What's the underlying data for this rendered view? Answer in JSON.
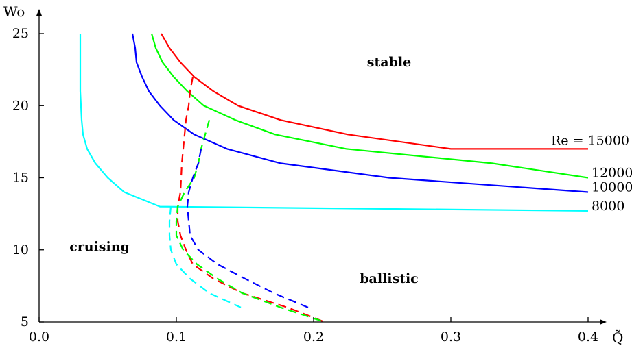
{
  "chart_data": {
    "type": "line",
    "xlabel": "Q̃",
    "ylabel": "Wo",
    "xlim": [
      0.0,
      0.4
    ],
    "ylim": [
      5,
      25
    ],
    "xticks": [
      "0.0",
      "0.1",
      "0.2",
      "0.3",
      "0.4"
    ],
    "yticks": [
      "5",
      "10",
      "15",
      "20",
      "25"
    ],
    "grid": false,
    "region_labels": [
      {
        "text": "stable",
        "x": 0.255,
        "y": 23.0
      },
      {
        "text": "cruising",
        "x": 0.044,
        "y": 10.2
      },
      {
        "text": "ballistic",
        "x": 0.255,
        "y": 8.0
      }
    ],
    "series": [
      {
        "label": "Re = 15000",
        "color": "#ff0000",
        "style": "solid",
        "x": [
          0.089,
          0.095,
          0.103,
          0.113,
          0.127,
          0.145,
          0.176,
          0.225,
          0.3,
          0.4
        ],
        "y": [
          25,
          24,
          23,
          22,
          21,
          20,
          19,
          18,
          17,
          17
        ]
      },
      {
        "label": "12000",
        "color": "#00ff00",
        "style": "solid",
        "x": [
          0.082,
          0.085,
          0.09,
          0.098,
          0.108,
          0.12,
          0.143,
          0.172,
          0.224,
          0.33,
          0.4
        ],
        "y": [
          25,
          24,
          23,
          22,
          21,
          20,
          19,
          18,
          17,
          16,
          15
        ]
      },
      {
        "label": "10000",
        "color": "#0000ff",
        "style": "solid",
        "x": [
          0.068,
          0.07,
          0.071,
          0.075,
          0.08,
          0.088,
          0.098,
          0.113,
          0.137,
          0.176,
          0.255,
          0.4
        ],
        "y": [
          25,
          24,
          23,
          22,
          21,
          20,
          19,
          18,
          17,
          16,
          15,
          14
        ]
      },
      {
        "label": "8000",
        "color": "#00ffff",
        "style": "solid",
        "x": [
          0.03,
          0.03,
          0.03,
          0.031,
          0.032,
          0.035,
          0.041,
          0.05,
          0.062,
          0.088,
          0.4
        ],
        "y": [
          25,
          23,
          21,
          19,
          18,
          17,
          16,
          15,
          14,
          13,
          12.7
        ]
      },
      {
        "label": "",
        "color": "#ff0000",
        "style": "dashed",
        "x": [
          0.112,
          0.11,
          0.109,
          0.107,
          0.104,
          0.103,
          0.101,
          0.101,
          0.103,
          0.107,
          0.112,
          0.127,
          0.148,
          0.181,
          0.208
        ],
        "y": [
          22,
          21,
          20,
          19,
          16,
          14,
          13,
          12,
          11,
          10,
          9,
          8,
          7,
          6,
          5
        ]
      },
      {
        "label": "",
        "color": "#00ff00",
        "style": "dashed",
        "x": [
          0.124,
          0.121,
          0.118,
          0.116,
          0.113,
          0.106,
          0.101,
          0.1,
          0.1,
          0.105,
          0.115,
          0.13,
          0.148,
          0.176,
          0.208
        ],
        "y": [
          19,
          18,
          17,
          16,
          15,
          14,
          13,
          12,
          11,
          10,
          9,
          8,
          7,
          6,
          5
        ]
      },
      {
        "label": "",
        "color": "#0000ff",
        "style": "dashed",
        "x": [
          0.118,
          0.116,
          0.112,
          0.109,
          0.108,
          0.109,
          0.11,
          0.116,
          0.13,
          0.15,
          0.171,
          0.196
        ],
        "y": [
          17,
          16,
          15,
          14,
          13,
          12,
          11,
          10,
          9,
          8,
          7,
          6
        ]
      },
      {
        "label": "",
        "color": "#00ffff",
        "style": "dashed",
        "x": [
          0.096,
          0.095,
          0.095,
          0.096,
          0.1,
          0.11,
          0.124,
          0.147
        ],
        "y": [
          13,
          12,
          11,
          10,
          9,
          8,
          7,
          6
        ]
      }
    ]
  }
}
